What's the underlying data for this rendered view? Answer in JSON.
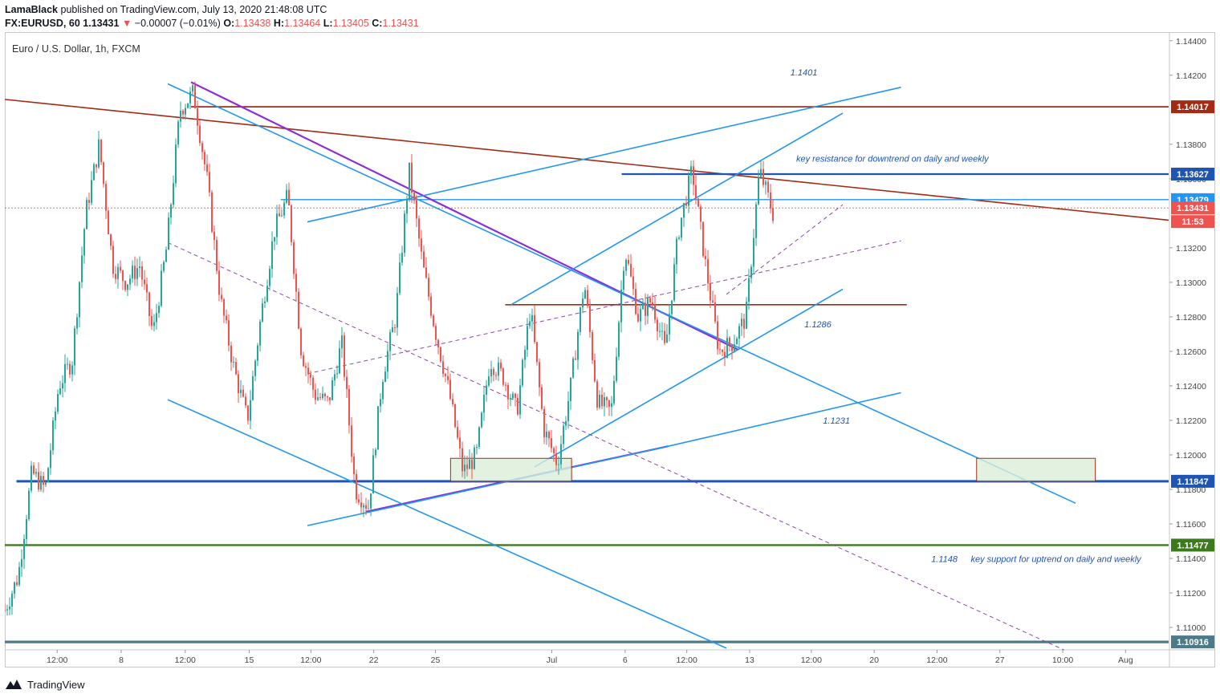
{
  "header": {
    "author": "LamaBlack",
    "published_text": "published on TradingView.com, July 13, 2020 21:48:08 UTC",
    "symbol": "FX:EURUSD, 60",
    "last": "1.13431",
    "change_arrow": "▼",
    "change": "−0.00007 (−0.01%)",
    "o_label": "O:",
    "o_value": "1.13438",
    "h_label": "H:",
    "h_value": "1.13464",
    "l_label": "L:",
    "l_value": "1.13405",
    "c_label": "C:",
    "c_value": "1.13431"
  },
  "footer": {
    "brand": "TradingView",
    "logo_icon": "tradingview-logo-icon"
  },
  "colors": {
    "up": "#26a69a",
    "down": "#ef5350",
    "blue_line": "#2196f3",
    "dark_blue": "#1e55b3",
    "maroon": "#a32b14",
    "purple": "#8c2bd9",
    "green": "#3d7a1e",
    "slate": "#4b7b8a"
  },
  "chart_data": {
    "type": "candlestick",
    "title": "Euro / U.S. Dollar, 1h, FXCM",
    "ylim": [
      1.1087,
      1.1445
    ],
    "y_ticks": [
      "1.14400",
      "1.14200",
      "1.13800",
      "1.13600",
      "1.13200",
      "1.13000",
      "1.12800",
      "1.12600",
      "1.12400",
      "1.12200",
      "1.12000",
      "1.11800",
      "1.11600",
      "1.11400",
      "1.11200",
      "1.11000"
    ],
    "x_ticks": [
      "12:00",
      "8",
      "12:00",
      "15",
      "12:00",
      "22",
      "25",
      "Jul",
      "6",
      "12:00",
      "13",
      "12:00",
      "20",
      "12:00",
      "27",
      "10:00",
      "Aug"
    ],
    "price_path": [
      1.111,
      1.113,
      1.119,
      1.118,
      1.124,
      1.1255,
      1.134,
      1.138,
      1.131,
      1.13,
      1.131,
      1.127,
      1.132,
      1.14,
      1.141,
      1.136,
      1.129,
      1.125,
      1.122,
      1.128,
      1.133,
      1.135,
      1.126,
      1.1235,
      1.123,
      1.1265,
      1.118,
      1.117,
      1.1245,
      1.128,
      1.1365,
      1.131,
      1.127,
      1.1235,
      1.119,
      1.12,
      1.1255,
      1.1245,
      1.1225,
      1.1285,
      1.1215,
      1.1195,
      1.124,
      1.13,
      1.123,
      1.1225,
      1.132,
      1.128,
      1.129,
      1.126,
      1.133,
      1.1365,
      1.131,
      1.126,
      1.1265,
      1.128,
      1.1365,
      1.134
    ],
    "price_levels": [
      {
        "value": 1.14017,
        "label": "1.14017",
        "color": "#a32b14"
      },
      {
        "value": 1.13627,
        "label": "1.13627",
        "color": "#1e55b3"
      },
      {
        "value": 1.13479,
        "label": "1.13479",
        "color": "#2196f3"
      },
      {
        "value": 1.13431,
        "label": "1.13431",
        "color": "#ef5350",
        "countdown": "11:53"
      },
      {
        "value": 1.11847,
        "label": "1.11847",
        "color": "#1e55b3"
      },
      {
        "value": 1.11477,
        "label": "1.11477",
        "color": "#3d7a1e"
      },
      {
        "value": 1.10916,
        "label": "1.10916",
        "color": "#4b7b8a"
      }
    ],
    "annotations": [
      {
        "text": "1.1401"
      },
      {
        "text": "key resistance for downtrend on daily and weekly"
      },
      {
        "text": "1.1286"
      },
      {
        "text": "1.1231"
      },
      {
        "text": "1.1148"
      },
      {
        "text": "key support for uptrend on daily and weekly"
      }
    ]
  }
}
